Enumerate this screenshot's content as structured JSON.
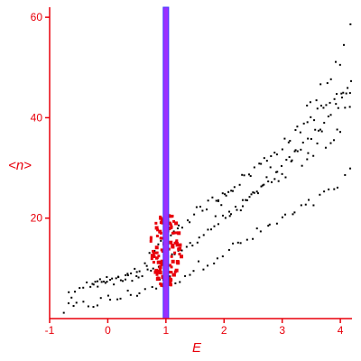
{
  "chart_data": {
    "type": "scatter",
    "title": "",
    "xlabel": "E",
    "ylabel": "<n>",
    "xlim": [
      -1.0,
      4.2
    ],
    "ylim": [
      0,
      62
    ],
    "x_ticks": [
      -1,
      0,
      1,
      2,
      3,
      4
    ],
    "y_ticks": [
      20,
      40,
      60
    ],
    "grid": false,
    "legend": "none",
    "colors": {
      "axis": "#e8000b",
      "black_points": "#000000",
      "red_points": "#e8000b",
      "line_fill": "#9b30ff",
      "line_edge": "#3a3aff"
    },
    "vertical_line": {
      "x": 1.0
    },
    "bands": [
      {
        "points": [
          [
            -0.8,
            1.5
          ],
          [
            -0.2,
            3.2
          ],
          [
            0.3,
            4.5
          ],
          [
            0.8,
            6.5
          ],
          [
            1.3,
            8.5
          ],
          [
            1.8,
            12.0
          ],
          [
            2.3,
            15.0
          ],
          [
            2.8,
            18.5
          ],
          [
            3.3,
            21.5
          ],
          [
            3.8,
            25.0
          ],
          [
            4.2,
            29.0
          ]
        ],
        "count": 60,
        "jitter": 1.2
      },
      {
        "points": [
          [
            -0.7,
            4.5
          ],
          [
            -0.2,
            7.5
          ],
          [
            0.3,
            7.8
          ],
          [
            0.7,
            9.5
          ],
          [
            1.1,
            12.0
          ],
          [
            1.5,
            15.5
          ],
          [
            2.0,
            20.0
          ],
          [
            2.5,
            24.0
          ],
          [
            3.0,
            30.0
          ],
          [
            3.6,
            37.5
          ],
          [
            4.2,
            46.0
          ]
        ],
        "count": 80,
        "jitter": 0.8
      },
      {
        "points": [
          [
            -0.3,
            7.0
          ],
          [
            0.2,
            7.5
          ],
          [
            0.6,
            10.5
          ],
          [
            1.0,
            16.0
          ],
          [
            1.5,
            21.0
          ],
          [
            2.0,
            25.0
          ],
          [
            2.5,
            29.5
          ],
          [
            3.0,
            34.5
          ],
          [
            3.6,
            41.0
          ],
          [
            4.2,
            46.5
          ]
        ],
        "count": 80,
        "jitter": 1.0
      },
      {
        "points": [
          [
            1.8,
            22.0
          ],
          [
            2.2,
            24.0
          ],
          [
            2.6,
            26.0
          ],
          [
            3.0,
            30.0
          ],
          [
            3.5,
            34.0
          ],
          [
            4.0,
            39.0
          ],
          [
            4.2,
            40.5
          ]
        ],
        "count": 35,
        "jitter": 2.5
      },
      {
        "points": [
          [
            3.4,
            40.0
          ],
          [
            3.7,
            46.0
          ],
          [
            4.0,
            53.0
          ],
          [
            4.2,
            61.0
          ]
        ],
        "count": 10,
        "jitter": 2.5
      }
    ],
    "red_cluster": {
      "center": [
        1.0,
        12.5
      ],
      "x_spread": 0.28,
      "y_range": [
        6.5,
        21.0
      ],
      "count": 140
    }
  }
}
